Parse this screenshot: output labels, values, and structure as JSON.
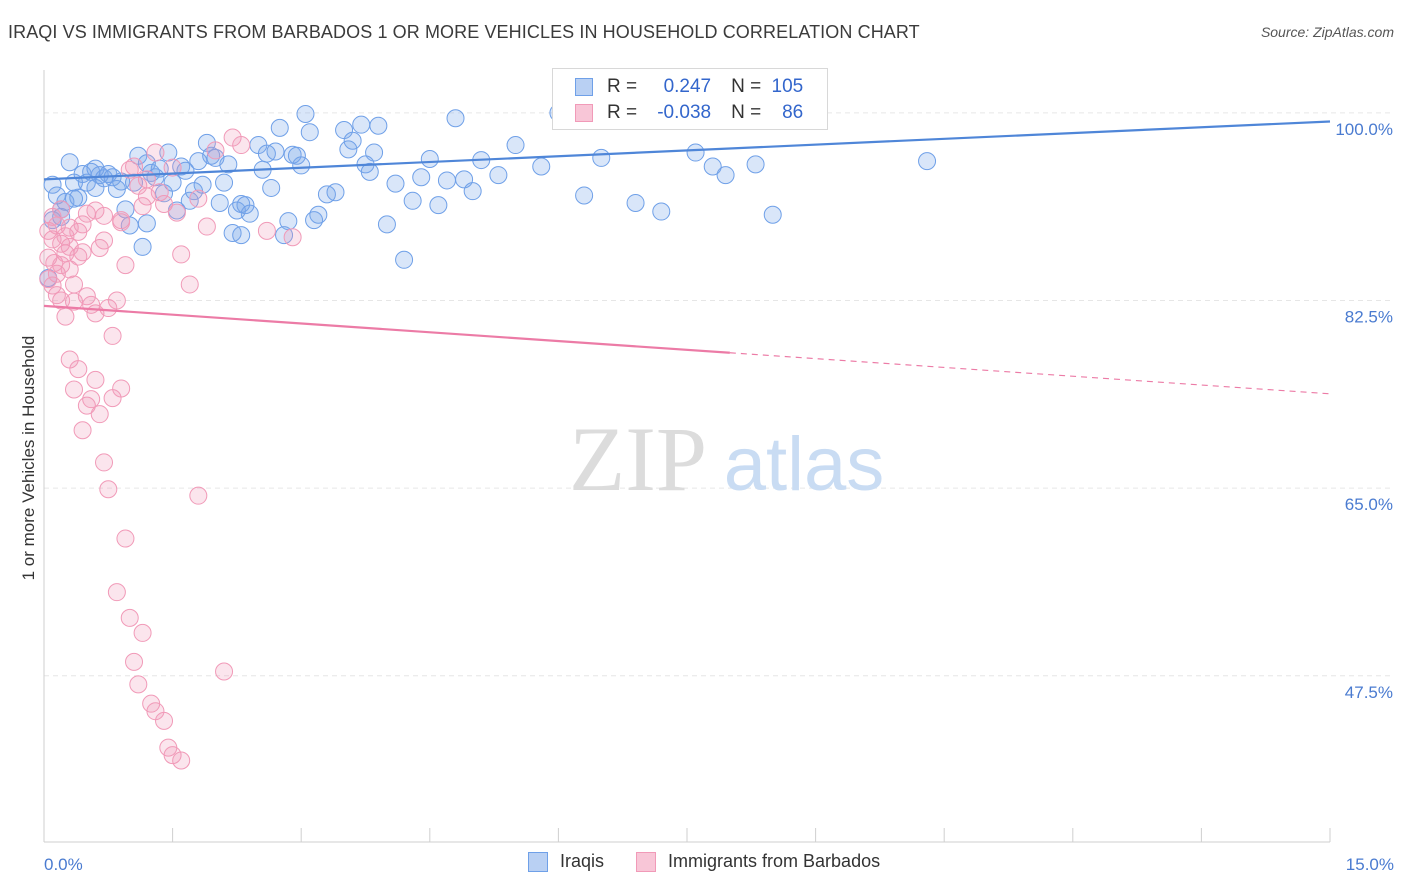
{
  "title": "IRAQI VS IMMIGRANTS FROM BARBADOS 1 OR MORE VEHICLES IN HOUSEHOLD CORRELATION CHART",
  "source": "Source: ZipAtlas.com",
  "watermark": {
    "zip": "ZIP",
    "atlas": "atlas"
  },
  "legend_top": {
    "r_label": "R =",
    "n_label": "N =",
    "rows": [
      {
        "r": "0.247",
        "n": "105",
        "color": "#6fa0e8"
      },
      {
        "r": "-0.038",
        "n": "86",
        "color": "#f19ab8"
      }
    ]
  },
  "legend_bottom": [
    {
      "label": "Iraqis",
      "color": "#6fa0e8"
    },
    {
      "label": "Immigrants from Barbados",
      "color": "#f19ab8"
    }
  ],
  "chart_data": {
    "type": "scatter",
    "title": "IRAQI VS IMMIGRANTS FROM BARBADOS 1 OR MORE VEHICLES IN HOUSEHOLD CORRELATION CHART",
    "xlabel": "",
    "ylabel": "1 or more Vehicles in Household",
    "xlim": [
      0,
      15
    ],
    "ylim": [
      32,
      104
    ],
    "x_tick_labels": [
      "0.0%",
      "15.0%"
    ],
    "y_ticks": [
      100.0,
      82.5,
      65.0,
      47.5
    ],
    "y_tick_labels": [
      "100.0%",
      "82.5%",
      "65.0%",
      "47.5%"
    ],
    "series": [
      {
        "name": "Iraqis",
        "color": "#4f86d8",
        "trend": {
          "x0": 0,
          "y0": 93.8,
          "x1": 15,
          "y1": 99.2,
          "solid_until": 15
        },
        "points": [
          [
            0.05,
            84.6
          ],
          [
            0.1,
            93.3
          ],
          [
            0.1,
            90.0
          ],
          [
            0.15,
            92.3
          ],
          [
            0.2,
            91.0
          ],
          [
            0.25,
            91.7
          ],
          [
            0.3,
            95.4
          ],
          [
            0.35,
            93.5
          ],
          [
            0.4,
            92.1
          ],
          [
            0.45,
            94.3
          ],
          [
            0.5,
            93.5
          ],
          [
            0.55,
            94.5
          ],
          [
            0.6,
            94.8
          ],
          [
            0.65,
            94.2
          ],
          [
            0.7,
            93.9
          ],
          [
            0.75,
            94.3
          ],
          [
            0.8,
            94.0
          ],
          [
            0.85,
            92.9
          ],
          [
            0.9,
            93.6
          ],
          [
            0.95,
            91.0
          ],
          [
            1.0,
            89.5
          ],
          [
            1.05,
            93.5
          ],
          [
            1.1,
            96.0
          ],
          [
            1.15,
            87.5
          ],
          [
            1.2,
            95.3
          ],
          [
            1.25,
            94.4
          ],
          [
            1.3,
            94.0
          ],
          [
            1.35,
            94.8
          ],
          [
            1.4,
            92.5
          ],
          [
            1.45,
            96.3
          ],
          [
            1.5,
            93.5
          ],
          [
            1.55,
            90.9
          ],
          [
            1.6,
            95.0
          ],
          [
            1.65,
            94.6
          ],
          [
            1.7,
            91.8
          ],
          [
            1.75,
            92.7
          ],
          [
            1.8,
            95.5
          ],
          [
            1.85,
            93.3
          ],
          [
            1.9,
            97.2
          ],
          [
            1.95,
            96.0
          ],
          [
            2.0,
            95.8
          ],
          [
            2.05,
            91.6
          ],
          [
            2.1,
            93.5
          ],
          [
            2.15,
            95.2
          ],
          [
            2.2,
            88.8
          ],
          [
            2.25,
            90.9
          ],
          [
            2.3,
            91.5
          ],
          [
            2.35,
            91.4
          ],
          [
            2.4,
            90.6
          ],
          [
            2.5,
            97.0
          ],
          [
            2.55,
            94.7
          ],
          [
            2.6,
            96.2
          ],
          [
            2.65,
            93.0
          ],
          [
            2.7,
            96.4
          ],
          [
            2.75,
            98.6
          ],
          [
            2.8,
            88.6
          ],
          [
            2.85,
            89.9
          ],
          [
            2.9,
            96.1
          ],
          [
            2.95,
            96.0
          ],
          [
            3.0,
            95.1
          ],
          [
            3.05,
            99.9
          ],
          [
            3.1,
            98.2
          ],
          [
            3.15,
            90.0
          ],
          [
            3.2,
            90.5
          ],
          [
            3.3,
            92.4
          ],
          [
            3.4,
            92.6
          ],
          [
            3.5,
            98.4
          ],
          [
            3.55,
            96.6
          ],
          [
            3.6,
            97.4
          ],
          [
            3.7,
            98.9
          ],
          [
            3.75,
            95.2
          ],
          [
            3.8,
            94.5
          ],
          [
            3.85,
            96.3
          ],
          [
            3.9,
            98.8
          ],
          [
            4.0,
            89.6
          ],
          [
            4.1,
            93.4
          ],
          [
            4.2,
            86.3
          ],
          [
            4.3,
            91.8
          ],
          [
            4.4,
            94.0
          ],
          [
            4.5,
            95.7
          ],
          [
            4.6,
            91.4
          ],
          [
            4.7,
            93.7
          ],
          [
            4.8,
            99.5
          ],
          [
            4.9,
            93.8
          ],
          [
            5.0,
            92.7
          ],
          [
            5.1,
            95.6
          ],
          [
            5.3,
            94.2
          ],
          [
            5.5,
            97.0
          ],
          [
            5.8,
            95.0
          ],
          [
            6.0,
            100.0
          ],
          [
            6.3,
            92.3
          ],
          [
            6.5,
            95.8
          ],
          [
            6.9,
            91.6
          ],
          [
            7.2,
            90.8
          ],
          [
            7.6,
            96.3
          ],
          [
            7.8,
            95.0
          ],
          [
            7.95,
            94.2
          ],
          [
            8.3,
            95.2
          ],
          [
            8.5,
            90.5
          ],
          [
            10.3,
            95.5
          ],
          [
            0.2,
            90.3
          ],
          [
            0.35,
            92.0
          ],
          [
            0.6,
            93.0
          ],
          [
            1.2,
            89.7
          ],
          [
            2.3,
            88.6
          ]
        ]
      },
      {
        "name": "Immigrants from Barbados",
        "color": "#ec7ba6",
        "trend": {
          "x0": 0,
          "y0": 82.0,
          "x1": 15,
          "y1": 73.8,
          "solid_until": 8
        },
        "points": [
          [
            0.05,
            89.0
          ],
          [
            0.05,
            86.5
          ],
          [
            0.05,
            84.5
          ],
          [
            0.1,
            90.3
          ],
          [
            0.1,
            88.2
          ],
          [
            0.12,
            86.0
          ],
          [
            0.15,
            85.0
          ],
          [
            0.15,
            89.5
          ],
          [
            0.2,
            87.8
          ],
          [
            0.2,
            85.8
          ],
          [
            0.25,
            88.5
          ],
          [
            0.25,
            86.9
          ],
          [
            0.3,
            87.5
          ],
          [
            0.3,
            85.4
          ],
          [
            0.35,
            84.0
          ],
          [
            0.35,
            82.4
          ],
          [
            0.4,
            88.9
          ],
          [
            0.4,
            86.6
          ],
          [
            0.45,
            89.6
          ],
          [
            0.45,
            87.0
          ],
          [
            0.5,
            90.6
          ],
          [
            0.5,
            82.9
          ],
          [
            0.55,
            82.1
          ],
          [
            0.6,
            81.3
          ],
          [
            0.65,
            87.4
          ],
          [
            0.7,
            90.4
          ],
          [
            0.7,
            88.1
          ],
          [
            0.75,
            81.8
          ],
          [
            0.8,
            79.2
          ],
          [
            0.85,
            82.5
          ],
          [
            0.9,
            90.0
          ],
          [
            0.95,
            85.8
          ],
          [
            1.0,
            94.7
          ],
          [
            1.05,
            95.0
          ],
          [
            1.1,
            93.2
          ],
          [
            1.15,
            91.3
          ],
          [
            1.2,
            93.8
          ],
          [
            1.3,
            96.3
          ],
          [
            1.35,
            92.6
          ],
          [
            1.4,
            91.5
          ],
          [
            1.5,
            94.9
          ],
          [
            1.55,
            90.7
          ],
          [
            1.6,
            86.8
          ],
          [
            1.7,
            84.0
          ],
          [
            1.8,
            92.0
          ],
          [
            1.9,
            89.4
          ],
          [
            2.0,
            96.5
          ],
          [
            2.2,
            97.7
          ],
          [
            2.3,
            97.0
          ],
          [
            0.1,
            83.9
          ],
          [
            0.15,
            83.0
          ],
          [
            0.2,
            82.5
          ],
          [
            0.25,
            81.0
          ],
          [
            0.3,
            77.0
          ],
          [
            0.35,
            74.2
          ],
          [
            0.4,
            76.1
          ],
          [
            0.45,
            70.4
          ],
          [
            0.5,
            72.7
          ],
          [
            0.55,
            73.3
          ],
          [
            0.6,
            75.1
          ],
          [
            0.65,
            71.9
          ],
          [
            0.7,
            67.4
          ],
          [
            0.75,
            64.9
          ],
          [
            0.8,
            73.4
          ],
          [
            0.85,
            55.3
          ],
          [
            0.9,
            74.3
          ],
          [
            0.95,
            60.3
          ],
          [
            1.0,
            52.9
          ],
          [
            1.05,
            48.8
          ],
          [
            1.1,
            46.7
          ],
          [
            1.15,
            51.5
          ],
          [
            1.25,
            44.9
          ],
          [
            1.3,
            44.2
          ],
          [
            1.4,
            43.3
          ],
          [
            1.45,
            40.8
          ],
          [
            1.5,
            40.1
          ],
          [
            1.6,
            39.6
          ],
          [
            1.8,
            64.3
          ],
          [
            2.1,
            47.9
          ],
          [
            2.6,
            89.0
          ],
          [
            0.2,
            91.0
          ],
          [
            0.3,
            89.3
          ],
          [
            0.6,
            90.9
          ],
          [
            0.9,
            89.8
          ],
          [
            1.2,
            92.2
          ],
          [
            2.9,
            88.4
          ]
        ]
      }
    ]
  }
}
